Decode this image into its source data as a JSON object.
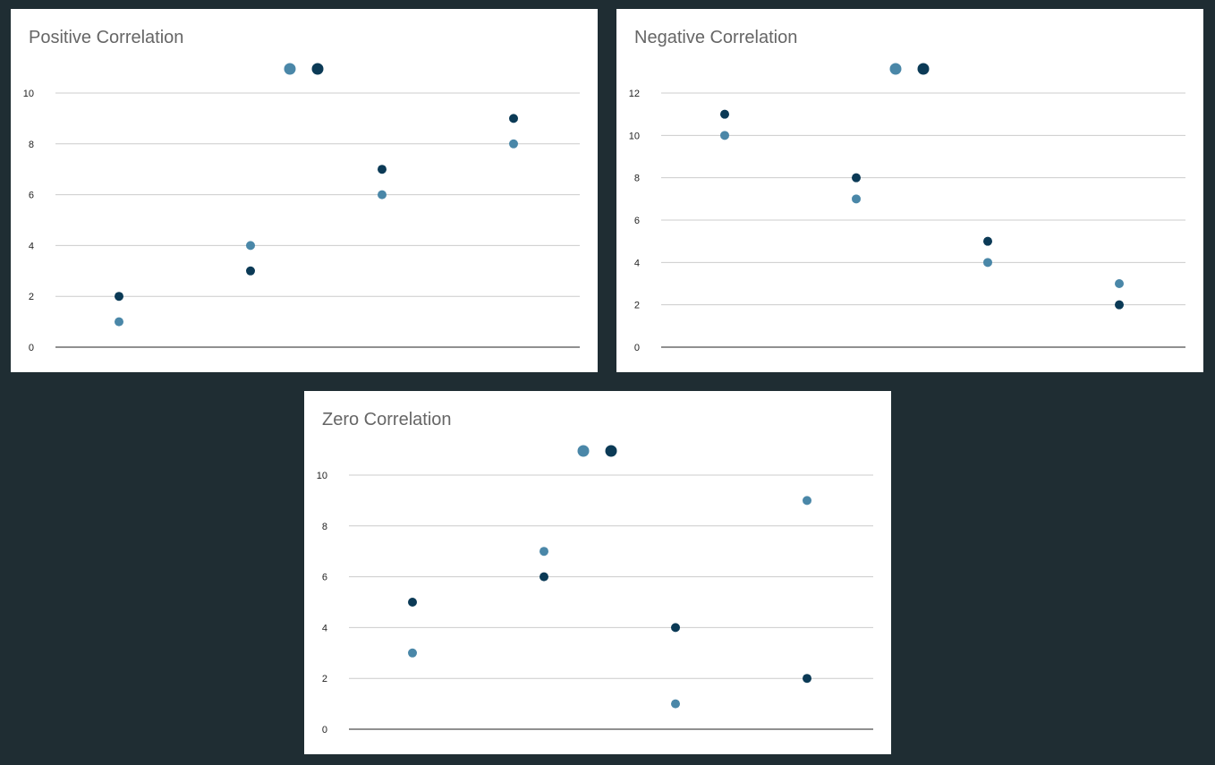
{
  "colors": {
    "background": "#1f2d33",
    "series_light": "#4a87a8",
    "series_dark": "#0b3a56",
    "gridline": "#cccccc",
    "baseline": "#222222",
    "title": "#666666"
  },
  "chart_data": [
    {
      "type": "scatter",
      "title": "Positive Correlation",
      "xlabel": "",
      "ylabel": "",
      "x": [
        1,
        2,
        3,
        4
      ],
      "ylim": [
        0,
        10
      ],
      "yticks": [
        0,
        2,
        4,
        6,
        8,
        10
      ],
      "grid": true,
      "legend": "top-center",
      "series": [
        {
          "color": "#4a87a8",
          "values": [
            1,
            4,
            6,
            8
          ]
        },
        {
          "color": "#0b3a56",
          "values": [
            2,
            3,
            7,
            9
          ]
        }
      ]
    },
    {
      "type": "scatter",
      "title": "Negative Correlation",
      "xlabel": "",
      "ylabel": "",
      "x": [
        1,
        2,
        3,
        4
      ],
      "ylim": [
        0,
        12
      ],
      "yticks": [
        0,
        2,
        4,
        6,
        8,
        10,
        12
      ],
      "grid": true,
      "legend": "top-center",
      "series": [
        {
          "color": "#4a87a8",
          "values": [
            10,
            7,
            4,
            3
          ]
        },
        {
          "color": "#0b3a56",
          "values": [
            11,
            8,
            5,
            2
          ]
        }
      ]
    },
    {
      "type": "scatter",
      "title": "Zero Correlation",
      "xlabel": "",
      "ylabel": "",
      "x": [
        1,
        2,
        3,
        4
      ],
      "ylim": [
        0,
        10
      ],
      "yticks": [
        0,
        2,
        4,
        6,
        8,
        10
      ],
      "grid": true,
      "legend": "top-center",
      "series": [
        {
          "color": "#4a87a8",
          "values": [
            3,
            7,
            1,
            9
          ]
        },
        {
          "color": "#0b3a56",
          "values": [
            5,
            6,
            4,
            2
          ]
        }
      ]
    }
  ]
}
